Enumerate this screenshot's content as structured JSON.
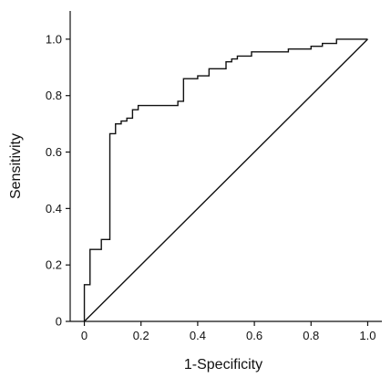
{
  "chart_data": {
    "type": "line",
    "xlabel": "1-Specificity",
    "ylabel": "Sensitivity",
    "xlim": [
      -0.05,
      1.05
    ],
    "ylim": [
      0,
      1.1
    ],
    "x_ticks": [
      "0",
      "0.2",
      "0.4",
      "0.6",
      "0.8",
      "1.0"
    ],
    "y_ticks": [
      "0",
      "0.2",
      "0.4",
      "0.6",
      "0.8",
      "1.0"
    ],
    "grid": false,
    "legend": "none",
    "line_color": "#111111",
    "series": [
      {
        "x": [
          0,
          0,
          0.02,
          0.02,
          0.06,
          0.06,
          0.09,
          0.09,
          0.11,
          0.11,
          0.13,
          0.13,
          0.15,
          0.15,
          0.17,
          0.17,
          0.19,
          0.19,
          0.33,
          0.33,
          0.35,
          0.35,
          0.4,
          0.4,
          0.44,
          0.44,
          0.5,
          0.5,
          0.52,
          0.52,
          0.54,
          0.54,
          0.59,
          0.59,
          0.72,
          0.72,
          0.8,
          0.8,
          0.84,
          0.84,
          0.89,
          0.89,
          1.0
        ],
        "y": [
          0,
          0.13,
          0.13,
          0.255,
          0.255,
          0.29,
          0.29,
          0.665,
          0.665,
          0.7,
          0.7,
          0.71,
          0.71,
          0.72,
          0.72,
          0.75,
          0.75,
          0.765,
          0.765,
          0.78,
          0.78,
          0.86,
          0.86,
          0.87,
          0.87,
          0.895,
          0.895,
          0.92,
          0.92,
          0.93,
          0.93,
          0.94,
          0.94,
          0.955,
          0.955,
          0.965,
          0.965,
          0.975,
          0.975,
          0.985,
          0.985,
          1.0,
          1.0
        ]
      },
      {
        "x": [
          0,
          1.0
        ],
        "y": [
          0,
          1.0
        ]
      }
    ]
  }
}
